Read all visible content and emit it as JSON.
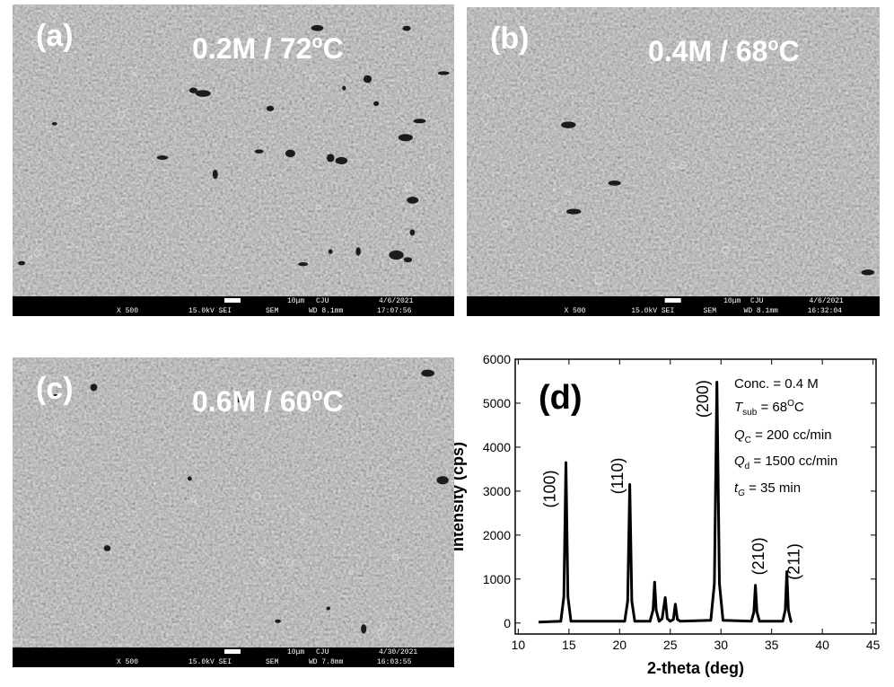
{
  "panels": [
    {
      "label": "(a)",
      "condition": {
        "text": "0.2M / 72",
        "sup": "o",
        "unit": "C"
      },
      "scale_bar": "10μm",
      "site": "CJU",
      "date": "4/6/2021",
      "info": [
        "X 500",
        "15.0kV SEI",
        "SEM",
        "WD 8.1mm",
        "17:07:56"
      ]
    },
    {
      "label": "(b)",
      "condition": {
        "text": "0.4M / 68",
        "sup": "o",
        "unit": "C"
      },
      "scale_bar": "10μm",
      "site": "CJU",
      "date": "4/6/2021",
      "info": [
        "X 500",
        "15.0kV SEI",
        "SEM",
        "WD 8.1mm",
        "16:32:04"
      ]
    },
    {
      "label": "(c)",
      "condition": {
        "text": "0.6M / 60",
        "sup": "o",
        "unit": "C"
      },
      "scale_bar": "10μm",
      "site": "CJU",
      "date": "4/30/2021",
      "info": [
        "X 500",
        "15.0kV SEI",
        "SEM",
        "WD 7.8mm",
        "16:03:55"
      ]
    }
  ],
  "chart_data": {
    "type": "line",
    "panel_label": "(d)",
    "x_label": "2-theta (deg)",
    "y_label": "Intensity (cps)",
    "color": "#000000",
    "x": [
      12,
      14.2,
      14.5,
      14.7,
      14.9,
      15.2,
      20.5,
      20.8,
      21.0,
      21.2,
      21.5,
      23.0,
      23.3,
      23.45,
      23.6,
      23.9,
      24.2,
      24.5,
      24.7,
      25.0,
      25.3,
      25.5,
      25.7,
      26.0,
      29.0,
      29.35,
      29.6,
      29.85,
      30.2,
      33.0,
      33.25,
      33.4,
      33.55,
      33.8,
      36.1,
      36.35,
      36.5,
      36.65,
      36.9,
      37.0
    ],
    "values": [
      20,
      40,
      600,
      3650,
      600,
      40,
      40,
      500,
      3150,
      500,
      40,
      40,
      300,
      930,
      300,
      40,
      100,
      580,
      100,
      40,
      80,
      430,
      80,
      40,
      60,
      900,
      5480,
      900,
      60,
      40,
      250,
      860,
      250,
      40,
      40,
      300,
      1170,
      300,
      40,
      20
    ],
    "xlim": [
      9.7,
      45.3
    ],
    "xticks": [
      10,
      15,
      20,
      25,
      30,
      35,
      40,
      45
    ],
    "ylim": [
      -250,
      6000
    ],
    "yticks": [
      0,
      1000,
      2000,
      3000,
      4000,
      5000,
      6000
    ],
    "annotations": [
      {
        "text": "(100)",
        "x": 13.1,
        "y": 2620
      },
      {
        "text": "(110)",
        "x": 19.8,
        "y": 2930
      },
      {
        "text": "(200)",
        "x": 28.2,
        "y": 4670
      },
      {
        "text": "(210)",
        "x": 33.7,
        "y": 1090
      },
      {
        "text": "(211)",
        "x": 37.2,
        "y": 980
      }
    ],
    "conditions": {
      "conc": "Conc. = 0.4 M",
      "tsub": {
        "symbol": "T",
        "sub": "sub",
        "text": " = 68",
        "sup": "O",
        "unit": "C"
      },
      "qc": {
        "symbol": "Q",
        "sub": "C",
        "text": " = 200 cc/min"
      },
      "qd": {
        "symbol": "Q",
        "sub": "d",
        "text": " = 1500 cc/min"
      },
      "tg": {
        "symbol": "t",
        "sub": "G",
        "text": " =  35 min"
      }
    }
  }
}
